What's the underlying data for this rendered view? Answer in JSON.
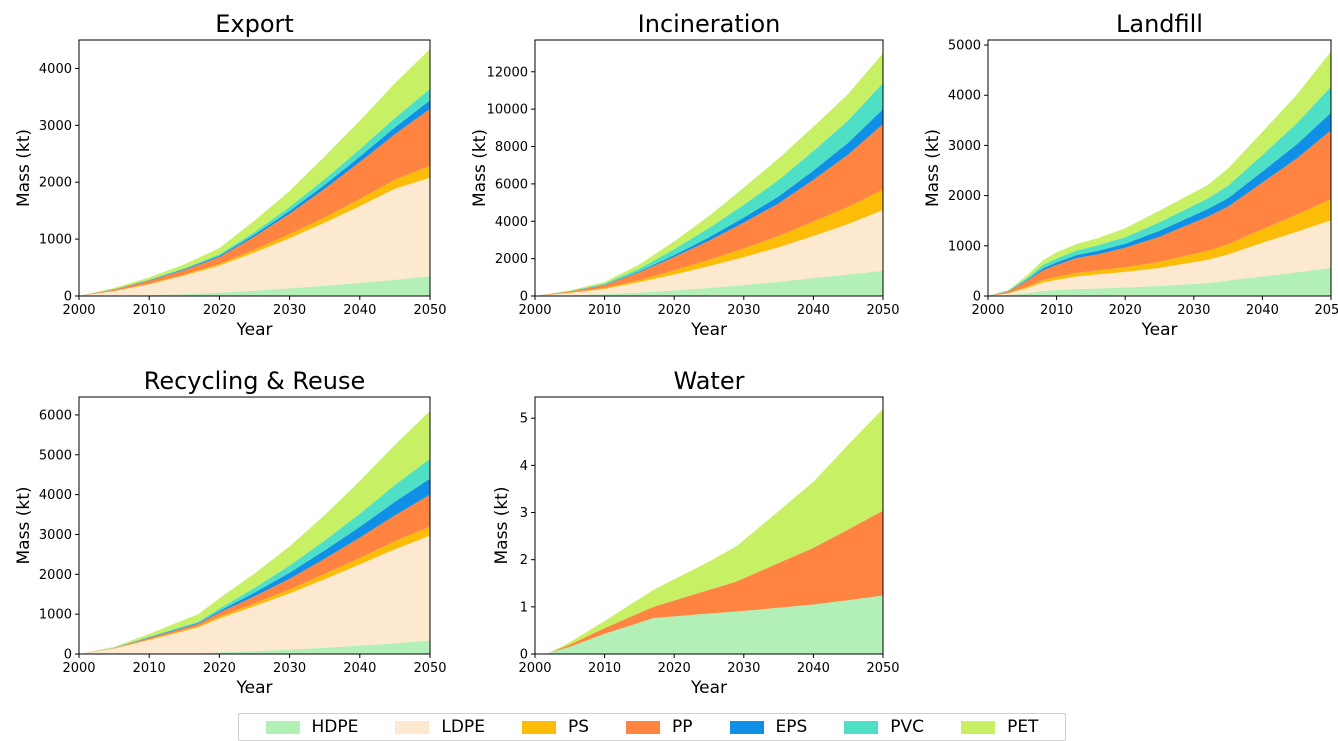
{
  "chart_data": [
    {
      "type": "area",
      "stacked": true,
      "title": "Export",
      "xlabel": "Year",
      "ylabel": "Mass (kt)",
      "xlim": [
        2000,
        2050
      ],
      "ylim": [
        0,
        4500
      ],
      "xticks": [
        2000,
        2010,
        2020,
        2030,
        2040,
        2050
      ],
      "yticks": [
        0,
        1000,
        2000,
        3000,
        4000
      ],
      "x": [
        2000,
        2005,
        2010,
        2015,
        2020,
        2025,
        2030,
        2035,
        2040,
        2045,
        2050
      ],
      "series": [
        {
          "name": "HDPE",
          "values": [
            0,
            5,
            15,
            30,
            60,
            95,
            135,
            180,
            230,
            285,
            350
          ]
        },
        {
          "name": "LDPE",
          "values": [
            0,
            80,
            190,
            330,
            475,
            670,
            880,
            1110,
            1350,
            1600,
            1730
          ]
        },
        {
          "name": "PS",
          "values": [
            0,
            4,
            10,
            18,
            30,
            50,
            70,
            95,
            125,
            160,
            210
          ]
        },
        {
          "name": "PP",
          "values": [
            0,
            25,
            55,
            80,
            120,
            230,
            360,
            500,
            650,
            800,
            1000
          ]
        },
        {
          "name": "EPS",
          "values": [
            0,
            4,
            9,
            14,
            22,
            35,
            50,
            70,
            95,
            120,
            150
          ]
        },
        {
          "name": "PVC",
          "values": [
            0,
            4,
            9,
            15,
            25,
            45,
            70,
            100,
            130,
            165,
            200
          ]
        },
        {
          "name": "PET",
          "values": [
            0,
            20,
            40,
            70,
            110,
            200,
            280,
            400,
            500,
            610,
            700
          ]
        }
      ]
    },
    {
      "type": "area",
      "stacked": true,
      "title": "Incineration",
      "xlabel": "Year",
      "ylabel": "Mass (kt)",
      "xlim": [
        2000,
        2050
      ],
      "ylim": [
        0,
        13700
      ],
      "xticks": [
        2000,
        2010,
        2020,
        2030,
        2040,
        2050
      ],
      "yticks": [
        0,
        2000,
        4000,
        6000,
        8000,
        10000,
        12000
      ],
      "x": [
        2000,
        2005,
        2010,
        2015,
        2020,
        2025,
        2030,
        2035,
        2040,
        2045,
        2050
      ],
      "series": [
        {
          "name": "HDPE",
          "values": [
            0,
            40,
            100,
            180,
            300,
            430,
            580,
            760,
            960,
            1150,
            1350
          ]
        },
        {
          "name": "LDPE",
          "values": [
            0,
            120,
            280,
            560,
            850,
            1170,
            1500,
            1850,
            2250,
            2700,
            3250
          ]
        },
        {
          "name": "PS",
          "values": [
            0,
            20,
            50,
            110,
            220,
            330,
            460,
            600,
            780,
            920,
            1100
          ]
        },
        {
          "name": "PP",
          "values": [
            0,
            60,
            160,
            420,
            720,
            1030,
            1390,
            1750,
            2230,
            2800,
            3500
          ]
        },
        {
          "name": "EPS",
          "values": [
            0,
            10,
            20,
            50,
            100,
            180,
            270,
            370,
            490,
            630,
            800
          ]
        },
        {
          "name": "PVC",
          "values": [
            0,
            20,
            50,
            150,
            310,
            500,
            680,
            880,
            1050,
            1200,
            1400
          ]
        },
        {
          "name": "PET",
          "values": [
            0,
            30,
            90,
            220,
            420,
            640,
            920,
            1150,
            1300,
            1420,
            1600
          ]
        }
      ]
    },
    {
      "type": "area",
      "stacked": true,
      "title": "Landfill",
      "xlabel": "Year",
      "ylabel": "Mass (kt)",
      "xlim": [
        2000,
        2050
      ],
      "ylim": [
        0,
        5100
      ],
      "xticks": [
        2000,
        2010,
        2020,
        2030,
        2040,
        2050
      ],
      "yticks": [
        0,
        1000,
        2000,
        3000,
        4000,
        5000
      ],
      "x": [
        2000,
        2003,
        2006,
        2008,
        2010,
        2013,
        2016,
        2020,
        2025,
        2032,
        2035,
        2040,
        2045,
        2050
      ],
      "series": [
        {
          "name": "HDPE",
          "values": [
            0,
            20,
            60,
            100,
            120,
            140,
            150,
            170,
            200,
            260,
            310,
            390,
            470,
            560
          ]
        },
        {
          "name": "LDPE",
          "values": [
            0,
            30,
            110,
            170,
            200,
            250,
            280,
            310,
            360,
            460,
            520,
            670,
            810,
            950
          ]
        },
        {
          "name": "PS",
          "values": [
            0,
            10,
            30,
            50,
            60,
            70,
            80,
            90,
            120,
            180,
            200,
            270,
            340,
            420
          ]
        },
        {
          "name": "PP",
          "values": [
            0,
            30,
            130,
            190,
            240,
            300,
            320,
            390,
            500,
            680,
            750,
            930,
            1120,
            1370
          ]
        },
        {
          "name": "EPS",
          "values": [
            0,
            10,
            20,
            40,
            50,
            60,
            70,
            80,
            120,
            150,
            170,
            220,
            280,
            350
          ]
        },
        {
          "name": "PVC",
          "values": [
            0,
            10,
            40,
            70,
            80,
            90,
            110,
            130,
            170,
            210,
            250,
            330,
            420,
            520
          ]
        },
        {
          "name": "PET",
          "values": [
            0,
            10,
            60,
            90,
            120,
            130,
            140,
            180,
            230,
            270,
            340,
            460,
            570,
            700
          ]
        }
      ]
    },
    {
      "type": "area",
      "stacked": true,
      "title": "Recycling & Reuse",
      "xlabel": "Year",
      "ylabel": "Mass (kt)",
      "xlim": [
        2000,
        2050
      ],
      "ylim": [
        0,
        6450
      ],
      "xticks": [
        2000,
        2010,
        2020,
        2030,
        2040,
        2050
      ],
      "yticks": [
        0,
        1000,
        2000,
        3000,
        4000,
        5000,
        6000
      ],
      "x": [
        2000,
        2005,
        2010,
        2017,
        2020,
        2025,
        2030,
        2035,
        2040,
        2045,
        2050
      ],
      "series": [
        {
          "name": "HDPE",
          "values": [
            0,
            5,
            10,
            20,
            40,
            70,
            110,
            160,
            210,
            270,
            340
          ]
        },
        {
          "name": "LDPE",
          "values": [
            0,
            130,
            340,
            650,
            850,
            1130,
            1410,
            1720,
            2040,
            2360,
            2630
          ]
        },
        {
          "name": "PS",
          "values": [
            0,
            5,
            15,
            30,
            50,
            70,
            100,
            130,
            160,
            200,
            230
          ]
        },
        {
          "name": "PP",
          "values": [
            0,
            10,
            40,
            60,
            100,
            180,
            270,
            380,
            510,
            650,
            800
          ]
        },
        {
          "name": "EPS",
          "values": [
            0,
            5,
            15,
            20,
            40,
            90,
            150,
            210,
            270,
            340,
            400
          ]
        },
        {
          "name": "PVC",
          "values": [
            0,
            5,
            15,
            30,
            60,
            120,
            180,
            250,
            330,
            420,
            500
          ]
        },
        {
          "name": "PET",
          "values": [
            0,
            20,
            70,
            190,
            260,
            360,
            480,
            640,
            820,
            1010,
            1200
          ]
        }
      ]
    },
    {
      "type": "area",
      "stacked": true,
      "title": "Water",
      "xlabel": "Year",
      "ylabel": "Mass (kt)",
      "xlim": [
        2000,
        2050
      ],
      "ylim": [
        0,
        5.45
      ],
      "xticks": [
        2000,
        2010,
        2020,
        2030,
        2040,
        2050
      ],
      "yticks": [
        0,
        1,
        2,
        3,
        4,
        5
      ],
      "x": [
        2000,
        2002,
        2005,
        2010,
        2017,
        2025,
        2029,
        2035,
        2040,
        2045,
        2050
      ],
      "series": [
        {
          "name": "HDPE",
          "values": [
            0,
            0.02,
            0.15,
            0.43,
            0.76,
            0.86,
            0.9,
            0.98,
            1.05,
            1.14,
            1.24
          ]
        },
        {
          "name": "LDPE",
          "values": [
            0,
            0,
            0,
            0,
            0,
            0,
            0,
            0,
            0,
            0,
            0
          ]
        },
        {
          "name": "PS",
          "values": [
            0,
            0,
            0,
            0,
            0,
            0,
            0,
            0,
            0,
            0,
            0
          ]
        },
        {
          "name": "PP",
          "values": [
            0,
            0,
            0.05,
            0.12,
            0.24,
            0.5,
            0.64,
            0.95,
            1.2,
            1.5,
            1.8
          ]
        },
        {
          "name": "EPS",
          "values": [
            0,
            0,
            0,
            0,
            0,
            0,
            0,
            0,
            0,
            0,
            0
          ]
        },
        {
          "name": "PVC",
          "values": [
            0,
            0,
            0,
            0,
            0,
            0,
            0,
            0,
            0,
            0,
            0
          ]
        },
        {
          "name": "PET",
          "values": [
            0,
            0,
            0.05,
            0.15,
            0.36,
            0.6,
            0.75,
            1.1,
            1.4,
            1.8,
            2.16
          ]
        }
      ]
    }
  ],
  "legend": [
    {
      "label": "HDPE",
      "color": "#b3f0b8"
    },
    {
      "label": "LDPE",
      "color": "#fde8d0"
    },
    {
      "label": "PS",
      "color": "#fbbd07"
    },
    {
      "label": "PP",
      "color": "#ff8442"
    },
    {
      "label": "EPS",
      "color": "#0f8fe6"
    },
    {
      "label": "PVC",
      "color": "#4de0c6"
    },
    {
      "label": "PET",
      "color": "#c7f064"
    }
  ]
}
